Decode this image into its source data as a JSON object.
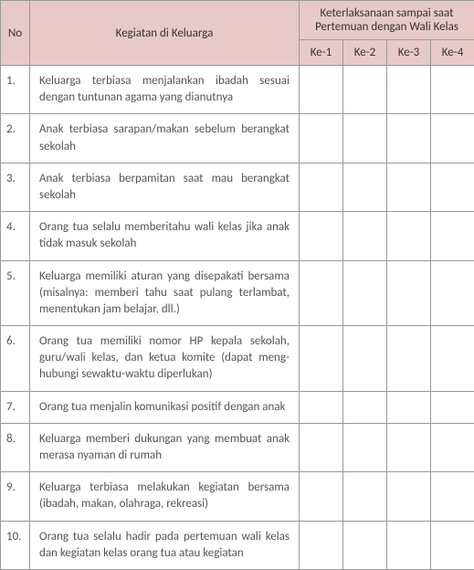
{
  "table": {
    "headers": {
      "no": "No",
      "kegiatan": "Kegiatan di Keluarga",
      "keterlaksanaan": "Keterlaksanaan sampai saat Pertemuan dengan Wali Kelas",
      "ke1": "Ke-1",
      "ke2": "Ke-2",
      "ke3": "Ke-3",
      "ke4": "Ke-4"
    },
    "rows": [
      {
        "no": "1.",
        "kegiatan": "Keluarga terbiasa menjalankan ibadah sesuai dengan tuntunan agama yang dianutnya"
      },
      {
        "no": "2.",
        "kegiatan": "Anak terbiasa sarapan/makan sebelum berang­kat sekolah"
      },
      {
        "no": "3.",
        "kegiatan": "Anak terbiasa berpamitan saat mau berangkat sekolah"
      },
      {
        "no": "4.",
        "kegiatan": "Orang tua selalu memberitahu wali kelas jika anak tidak masuk sekolah"
      },
      {
        "no": "5.",
        "kegiatan": "Keluarga memiliki aturan yang disepakati ber­sama (misalnya: memberi tahu saat pulang ter­lambat, menentukan jam belajar, dll.)"
      },
      {
        "no": "6.",
        "kegiatan": "Orang tua memiliki nomor HP kepala sekolah, guru/wali kelas, dan ketua komite (dapat meng­hubungi sewaktu-waktu diperlukan)"
      },
      {
        "no": "7.",
        "kegiatan": "Orang tua menjalin komunikasi positif dengan anak"
      },
      {
        "no": "8.",
        "kegiatan": "Keluarga memberi dukungan yang membuat anak merasa nyaman di rumah"
      },
      {
        "no": "9.",
        "kegiatan": "Keluarga terbiasa melakukan kegiatan bersama (ibadah, makan, olahraga, rekreasi)"
      },
      {
        "no": "10.",
        "kegiatan": "Orang tua selalu hadir pada pertemuan wali kelas dan kegiatan kelas orang tua atau kegiatan"
      }
    ]
  },
  "styling": {
    "header_bg": "#e8c9c9",
    "border_color": "#999999",
    "text_color": "#555555",
    "header_text_color": "#333333",
    "font_size_header": 13,
    "font_size_body": 13,
    "col_widths": {
      "no": 32,
      "kegiatan": 295,
      "ke": 48
    }
  }
}
